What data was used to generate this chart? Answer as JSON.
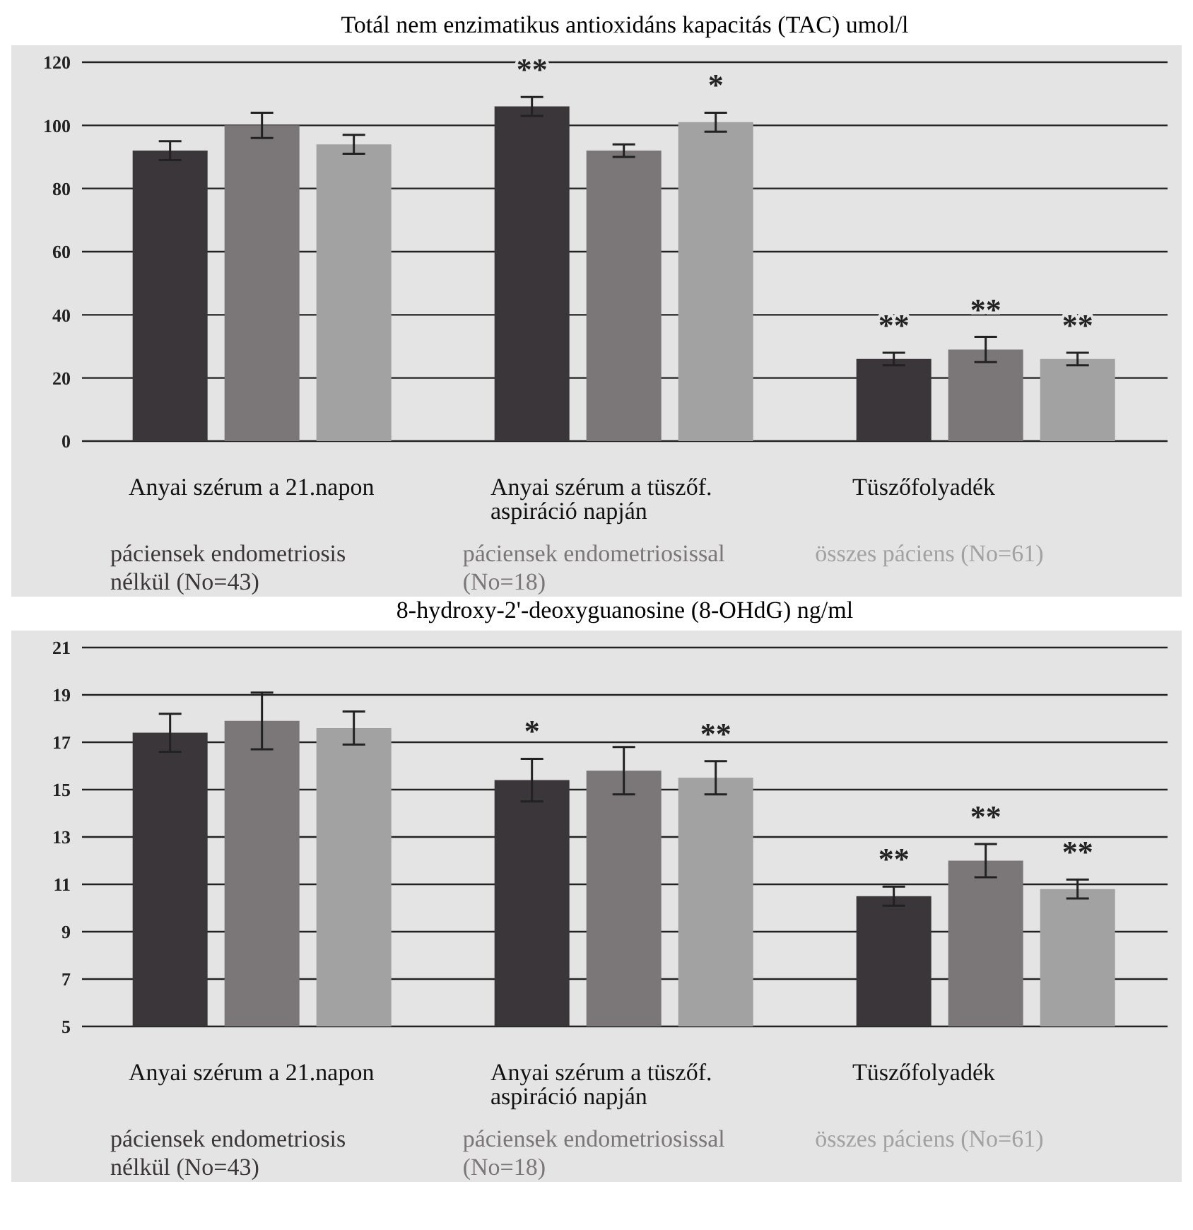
{
  "chart_data": [
    {
      "type": "bar",
      "title": "Totál nem enzimatikus antioxidáns kapacitás (TAC) umol/l",
      "categories": [
        "Anyai szérum a 21.napon",
        "Anyai szérum a tüszőf. aspiráció napján",
        "Tüszőfolyadék"
      ],
      "series": [
        {
          "name": "páciensek endometriosis nélkül (No=43)",
          "color": "#3b3639",
          "values": [
            92,
            106,
            26
          ],
          "errors": [
            3,
            3,
            2
          ],
          "value_labels": [
            null,
            "**",
            "**"
          ]
        },
        {
          "name": "páciensek endometriosissal (No=18)",
          "color": "#7b7779",
          "values": [
            100,
            92,
            29
          ],
          "errors": [
            4,
            2,
            4
          ],
          "value_labels": [
            null,
            null,
            "**"
          ]
        },
        {
          "name": "összes páciens (No=61)",
          "color": "#a3a2a3",
          "values": [
            94,
            101,
            26
          ],
          "errors": [
            3,
            3,
            2
          ],
          "value_labels": [
            null,
            "*",
            "**"
          ]
        }
      ],
      "ylim": [
        0,
        120
      ],
      "yticks": [
        0,
        20,
        40,
        60,
        80,
        100,
        120
      ],
      "grid": "y",
      "legend": "bottom"
    },
    {
      "type": "bar",
      "title": "8-hydroxy-2'-deoxyguanosine (8-OHdG) ng/ml",
      "categories": [
        "Anyai szérum a 21.napon",
        "Anyai szérum a tüszőf. aspiráció napján",
        "Tüszőfolyadék"
      ],
      "series": [
        {
          "name": "páciensek endometriosis nélkül (No=43)",
          "color": "#3b3639",
          "values": [
            17.4,
            15.4,
            10.5
          ],
          "errors": [
            0.8,
            0.9,
            0.4
          ],
          "value_labels": [
            null,
            "*",
            "**"
          ]
        },
        {
          "name": "páciensek endometriosissal (No=18)",
          "color": "#7b7779",
          "values": [
            17.9,
            15.8,
            12.0
          ],
          "errors": [
            1.2,
            1.0,
            0.7
          ],
          "value_labels": [
            null,
            null,
            "**"
          ]
        },
        {
          "name": "összes páciens (No=61)",
          "color": "#a3a2a3",
          "values": [
            17.6,
            15.5,
            10.8
          ],
          "errors": [
            0.7,
            0.7,
            0.4
          ],
          "value_labels": [
            null,
            "**",
            "**"
          ]
        }
      ],
      "ylim": [
        5,
        21
      ],
      "yticks": [
        5,
        7,
        9,
        11,
        13,
        15,
        17,
        19,
        21
      ],
      "grid": "y",
      "legend": "bottom"
    }
  ]
}
